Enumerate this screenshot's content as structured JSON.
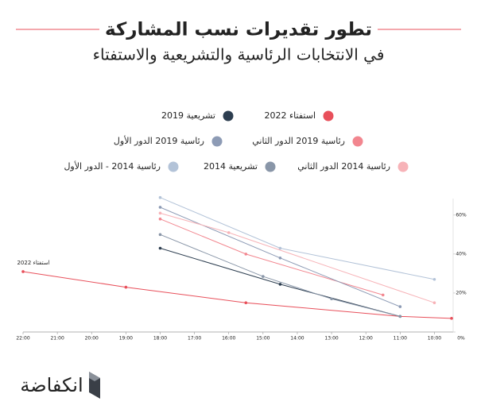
{
  "chart_data": {
    "type": "line",
    "title": "تطور تقديرات نسب المشاركة",
    "subtitle": "في الانتخابات الرئاسية والتشريعية والاستفتاء",
    "annotation": "استفتاء 2022",
    "brand": "انكفاضة",
    "xlim": [
      22,
      9.5
    ],
    "xticks": [
      {
        "value": 22,
        "label": "22:00"
      },
      {
        "value": 21,
        "label": "21:00"
      },
      {
        "value": 20,
        "label": "20:00"
      },
      {
        "value": 19,
        "label": "19:00"
      },
      {
        "value": 18,
        "label": "18:00"
      },
      {
        "value": 17,
        "label": "17:00"
      },
      {
        "value": 16,
        "label": "16:00"
      },
      {
        "value": 15,
        "label": "15:00"
      },
      {
        "value": 14,
        "label": "14:00"
      },
      {
        "value": 13,
        "label": "13:00"
      },
      {
        "value": 12,
        "label": "12:00"
      },
      {
        "value": 11,
        "label": "11:00"
      },
      {
        "value": 10,
        "label": "10:00"
      }
    ],
    "ylim": [
      0,
      75
    ],
    "yticks": [
      {
        "value": 0,
        "label": "0%"
      },
      {
        "value": 20,
        "label": "20%"
      },
      {
        "value": 40,
        "label": "40%"
      },
      {
        "value": 60,
        "label": "60%"
      }
    ],
    "series": [
      {
        "name": "استفتاء 2022",
        "color": "#e8505b",
        "x": [
          22,
          19,
          15.5,
          11,
          9.5
        ],
        "values": [
          31,
          23,
          15,
          8,
          7
        ]
      },
      {
        "name": "تشريعية 2019",
        "color": "#2d3e50",
        "x": [
          18,
          14.5,
          11
        ],
        "values": [
          43,
          24.5,
          8
        ]
      },
      {
        "name": "رئاسية 2019 الدور الثاني",
        "color": "#f2868f",
        "x": [
          18,
          15.5,
          11.5
        ],
        "values": [
          58,
          40,
          19
        ]
      },
      {
        "name": "رئاسية 2019 الدور الأول",
        "color": "#8d9bb5",
        "x": [
          18,
          14.5,
          11
        ],
        "values": [
          64,
          38,
          13
        ]
      },
      {
        "name": "رئاسية 2014 الدور الثاني",
        "color": "#f7b3b8",
        "x": [
          18,
          16,
          10
        ],
        "values": [
          61,
          51,
          15
        ]
      },
      {
        "name": "تشريعية 2014",
        "color": "#8996a8",
        "x": [
          18,
          15,
          13,
          11
        ],
        "values": [
          50,
          28.5,
          17,
          8
        ]
      },
      {
        "name": "رئاسية 2014 -  الدور الأول",
        "color": "#b3c3d8",
        "x": [
          18,
          14.5,
          10
        ],
        "values": [
          69,
          43,
          27
        ]
      }
    ]
  }
}
